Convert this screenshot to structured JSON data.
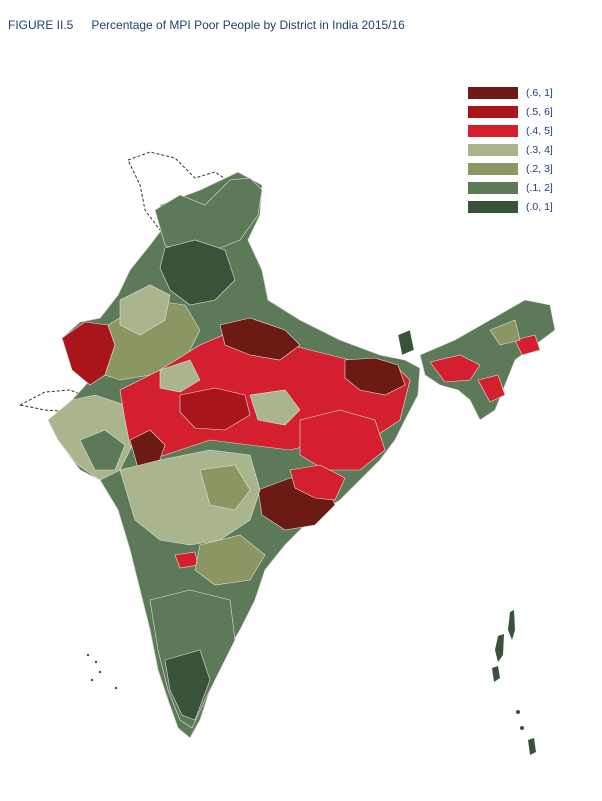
{
  "figure": {
    "label": "FIGURE II.5",
    "title": "Percentage of MPI Poor People by District in India 2015/16"
  },
  "legend": {
    "items": [
      {
        "label": "(.6, 1]",
        "color": "#6b1a14"
      },
      {
        "label": "(.5, 6]",
        "color": "#a8161c"
      },
      {
        "label": "(.4, 5]",
        "color": "#d4202e"
      },
      {
        "label": "(.3, 4]",
        "color": "#a9b58c"
      },
      {
        "label": "(.2, 3]",
        "color": "#8a9762"
      },
      {
        "label": "(.1, 2]",
        "color": "#5d7a58"
      },
      {
        "label": "(.0, 1]",
        "color": "#38533a"
      }
    ]
  },
  "colors": {
    "border": "#e0e0e0",
    "outline": "#333333"
  }
}
